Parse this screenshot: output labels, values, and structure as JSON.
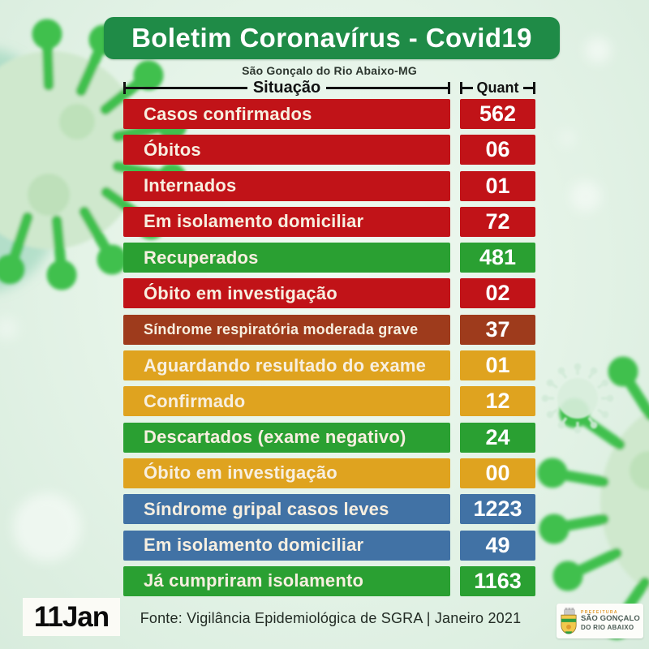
{
  "page": {
    "title": "Boletim Coronavírus - Covid19",
    "subtitle": "São Gonçalo do Rio Abaixo-MG"
  },
  "table_header": {
    "situation": "Situação",
    "quantity": "Quant"
  },
  "chart_data": {
    "type": "table",
    "title": "Boletim Coronavírus - Covid19",
    "subtitle": "São Gonçalo do Rio Abaixo-MG",
    "columns": [
      "Situação",
      "Quant"
    ],
    "rows": [
      {
        "label": "Casos confirmados",
        "value": "562",
        "color": "red"
      },
      {
        "label": "Óbitos",
        "value": "06",
        "color": "red"
      },
      {
        "label": "Internados",
        "value": "01",
        "color": "red"
      },
      {
        "label": "Em isolamento domiciliar",
        "value": "72",
        "color": "red"
      },
      {
        "label": "Recuperados",
        "value": "481",
        "color": "green"
      },
      {
        "label": "Óbito em investigação",
        "value": "02",
        "color": "red"
      },
      {
        "label": "Síndrome respiratória moderada grave",
        "value": "37",
        "color": "brown",
        "small": true
      },
      {
        "label": "Aguardando resultado do exame",
        "value": "01",
        "color": "yellow"
      },
      {
        "label": "Confirmado",
        "value": "12",
        "color": "yellow"
      },
      {
        "label": "Descartados (exame negativo)",
        "value": "24",
        "color": "green"
      },
      {
        "label": "Óbito em investigação",
        "value": "00",
        "color": "yellow"
      },
      {
        "label": "Síndrome gripal casos leves",
        "value": "1223",
        "color": "blue"
      },
      {
        "label": "Em isolamento domiciliar",
        "value": "49",
        "color": "blue"
      },
      {
        "label": "Já cumpriram isolamento",
        "value": "1163",
        "color": "green"
      }
    ]
  },
  "footer": {
    "date_label": "11Jan",
    "source": "Fonte: Vigilância Epidemiológica de SGRA | Janeiro 2021",
    "logo": {
      "line1": "PREFEITURA",
      "line2": "SÃO GONÇALO",
      "line3": "DO RIO ABAIXO"
    }
  },
  "colors": {
    "red": "#C11318",
    "green": "#2AA032",
    "brown": "#9E3B1C",
    "yellow": "#DFA31F",
    "blue": "#4172A5",
    "banner_green": "#1F8B47",
    "row_text": "#F7EFE0",
    "value_text": "#FFFFFF"
  }
}
